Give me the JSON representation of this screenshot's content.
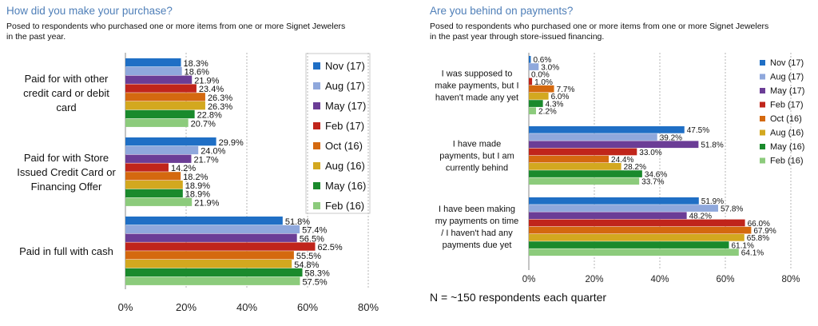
{
  "colors": {
    "title": "#4f7fb8",
    "series": [
      "#1f6fc5",
      "#8fa8dc",
      "#6b3d96",
      "#c0251b",
      "#d4690f",
      "#d3a81f",
      "#1a8a2c",
      "#8ccb7c"
    ],
    "gridline": "#b5b5b5"
  },
  "chart_data": [
    {
      "type": "bar",
      "orientation": "horizontal",
      "title": "How did you make your purchase?",
      "subtitle": "Posed to respondents who purchased one or more items from one or more Signet Jewelers\nin the past year.",
      "categories": [
        "Paid for with other credit card or debit card",
        "Paid for with Store Issued Credit Card or Financing Offer",
        "Paid in full with cash"
      ],
      "category_lines": [
        [
          "Paid for with other",
          "credit card or debit",
          "card"
        ],
        [
          "Paid for with Store",
          "Issued Credit Card or",
          "Financing Offer"
        ],
        [
          "Paid in full with cash"
        ]
      ],
      "series": [
        {
          "name": "Nov (17)",
          "values": [
            18.3,
            29.9,
            51.8
          ]
        },
        {
          "name": "Aug (17)",
          "values": [
            18.6,
            24.0,
            57.4
          ]
        },
        {
          "name": "May (17)",
          "values": [
            21.9,
            21.7,
            56.5
          ]
        },
        {
          "name": "Feb (17)",
          "values": [
            23.4,
            14.2,
            62.5
          ]
        },
        {
          "name": "Oct (16)",
          "values": [
            26.3,
            18.2,
            55.5
          ]
        },
        {
          "name": "Aug (16)",
          "values": [
            26.3,
            18.9,
            54.8
          ]
        },
        {
          "name": "May (16)",
          "values": [
            22.8,
            18.9,
            58.3
          ]
        },
        {
          "name": "Feb (16)",
          "values": [
            20.7,
            21.9,
            57.5
          ]
        }
      ],
      "xlim": [
        0,
        80
      ],
      "xticks": [
        "0%",
        "20%",
        "40%",
        "60%",
        "80%"
      ],
      "grid": true,
      "legend": "right"
    },
    {
      "type": "bar",
      "orientation": "horizontal",
      "title": "Are you behind on payments?",
      "subtitle": "Posed to respondents who purchased one or more items from one or more Signet Jewelers\nin the past year through store-issued financing.",
      "categories": [
        "I was supposed to make payments, but I haven't made any yet",
        "I have made payments, but I am currently behind",
        "I have been making my payments on time / I haven't had any payments due yet"
      ],
      "category_lines": [
        [
          "I was supposed to",
          "make payments, but I",
          "haven't made any yet"
        ],
        [
          "I have made",
          "payments, but I am",
          "currently behind"
        ],
        [
          "I have been making",
          "my payments on time",
          "/ I haven't had any",
          "payments due yet"
        ]
      ],
      "series": [
        {
          "name": "Nov (17)",
          "values": [
            0.6,
            47.5,
            51.9
          ]
        },
        {
          "name": "Aug (17)",
          "values": [
            3.0,
            39.2,
            57.8
          ]
        },
        {
          "name": "May (17)",
          "values": [
            0.0,
            51.8,
            48.2
          ]
        },
        {
          "name": "Feb (17)",
          "values": [
            1.0,
            33.0,
            66.0
          ]
        },
        {
          "name": "Oct (16)",
          "values": [
            7.7,
            24.4,
            67.9
          ]
        },
        {
          "name": "Aug (16)",
          "values": [
            6.0,
            28.2,
            65.8
          ]
        },
        {
          "name": "May (16)",
          "values": [
            4.3,
            34.6,
            61.1
          ]
        },
        {
          "name": "Feb (16)",
          "values": [
            2.2,
            33.7,
            64.1
          ]
        }
      ],
      "xlim": [
        0,
        80
      ],
      "xticks": [
        "0%",
        "20%",
        "40%",
        "60%",
        "80%"
      ],
      "grid": true,
      "legend": "right"
    }
  ],
  "footnote": "N = ~150 respondents each quarter"
}
